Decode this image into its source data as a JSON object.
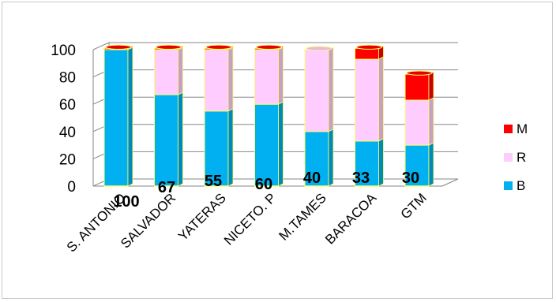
{
  "chart_data": {
    "type": "bar",
    "stacked": true,
    "three_d": true,
    "categories": [
      "S. ANTONIO",
      "SALVADOR",
      "YATERAS",
      "NICETO. P",
      "M.TAMES",
      "BARACOA",
      "GTM"
    ],
    "series": [
      {
        "name": "B",
        "color": "#00b0f0",
        "values": [
          100,
          67,
          55,
          60,
          40,
          33,
          30
        ]
      },
      {
        "name": "R",
        "color": "#ffccff",
        "values": [
          0,
          33,
          45,
          40,
          60,
          60,
          33
        ]
      },
      {
        "name": "M",
        "color": "#ff0000",
        "values": [
          1,
          1,
          1,
          1,
          0,
          8,
          19
        ]
      }
    ],
    "data_labels": [
      "100",
      "67",
      "55",
      "60",
      "40",
      "33",
      "30"
    ],
    "yticks": [
      "0",
      "20",
      "40",
      "60",
      "80",
      "100"
    ],
    "ylim": [
      0,
      100
    ],
    "grid": true,
    "legend_position": "right",
    "legend_order": [
      "M",
      "R",
      "B"
    ],
    "edge_color": "#ffff66",
    "grid_color": "#868686"
  }
}
